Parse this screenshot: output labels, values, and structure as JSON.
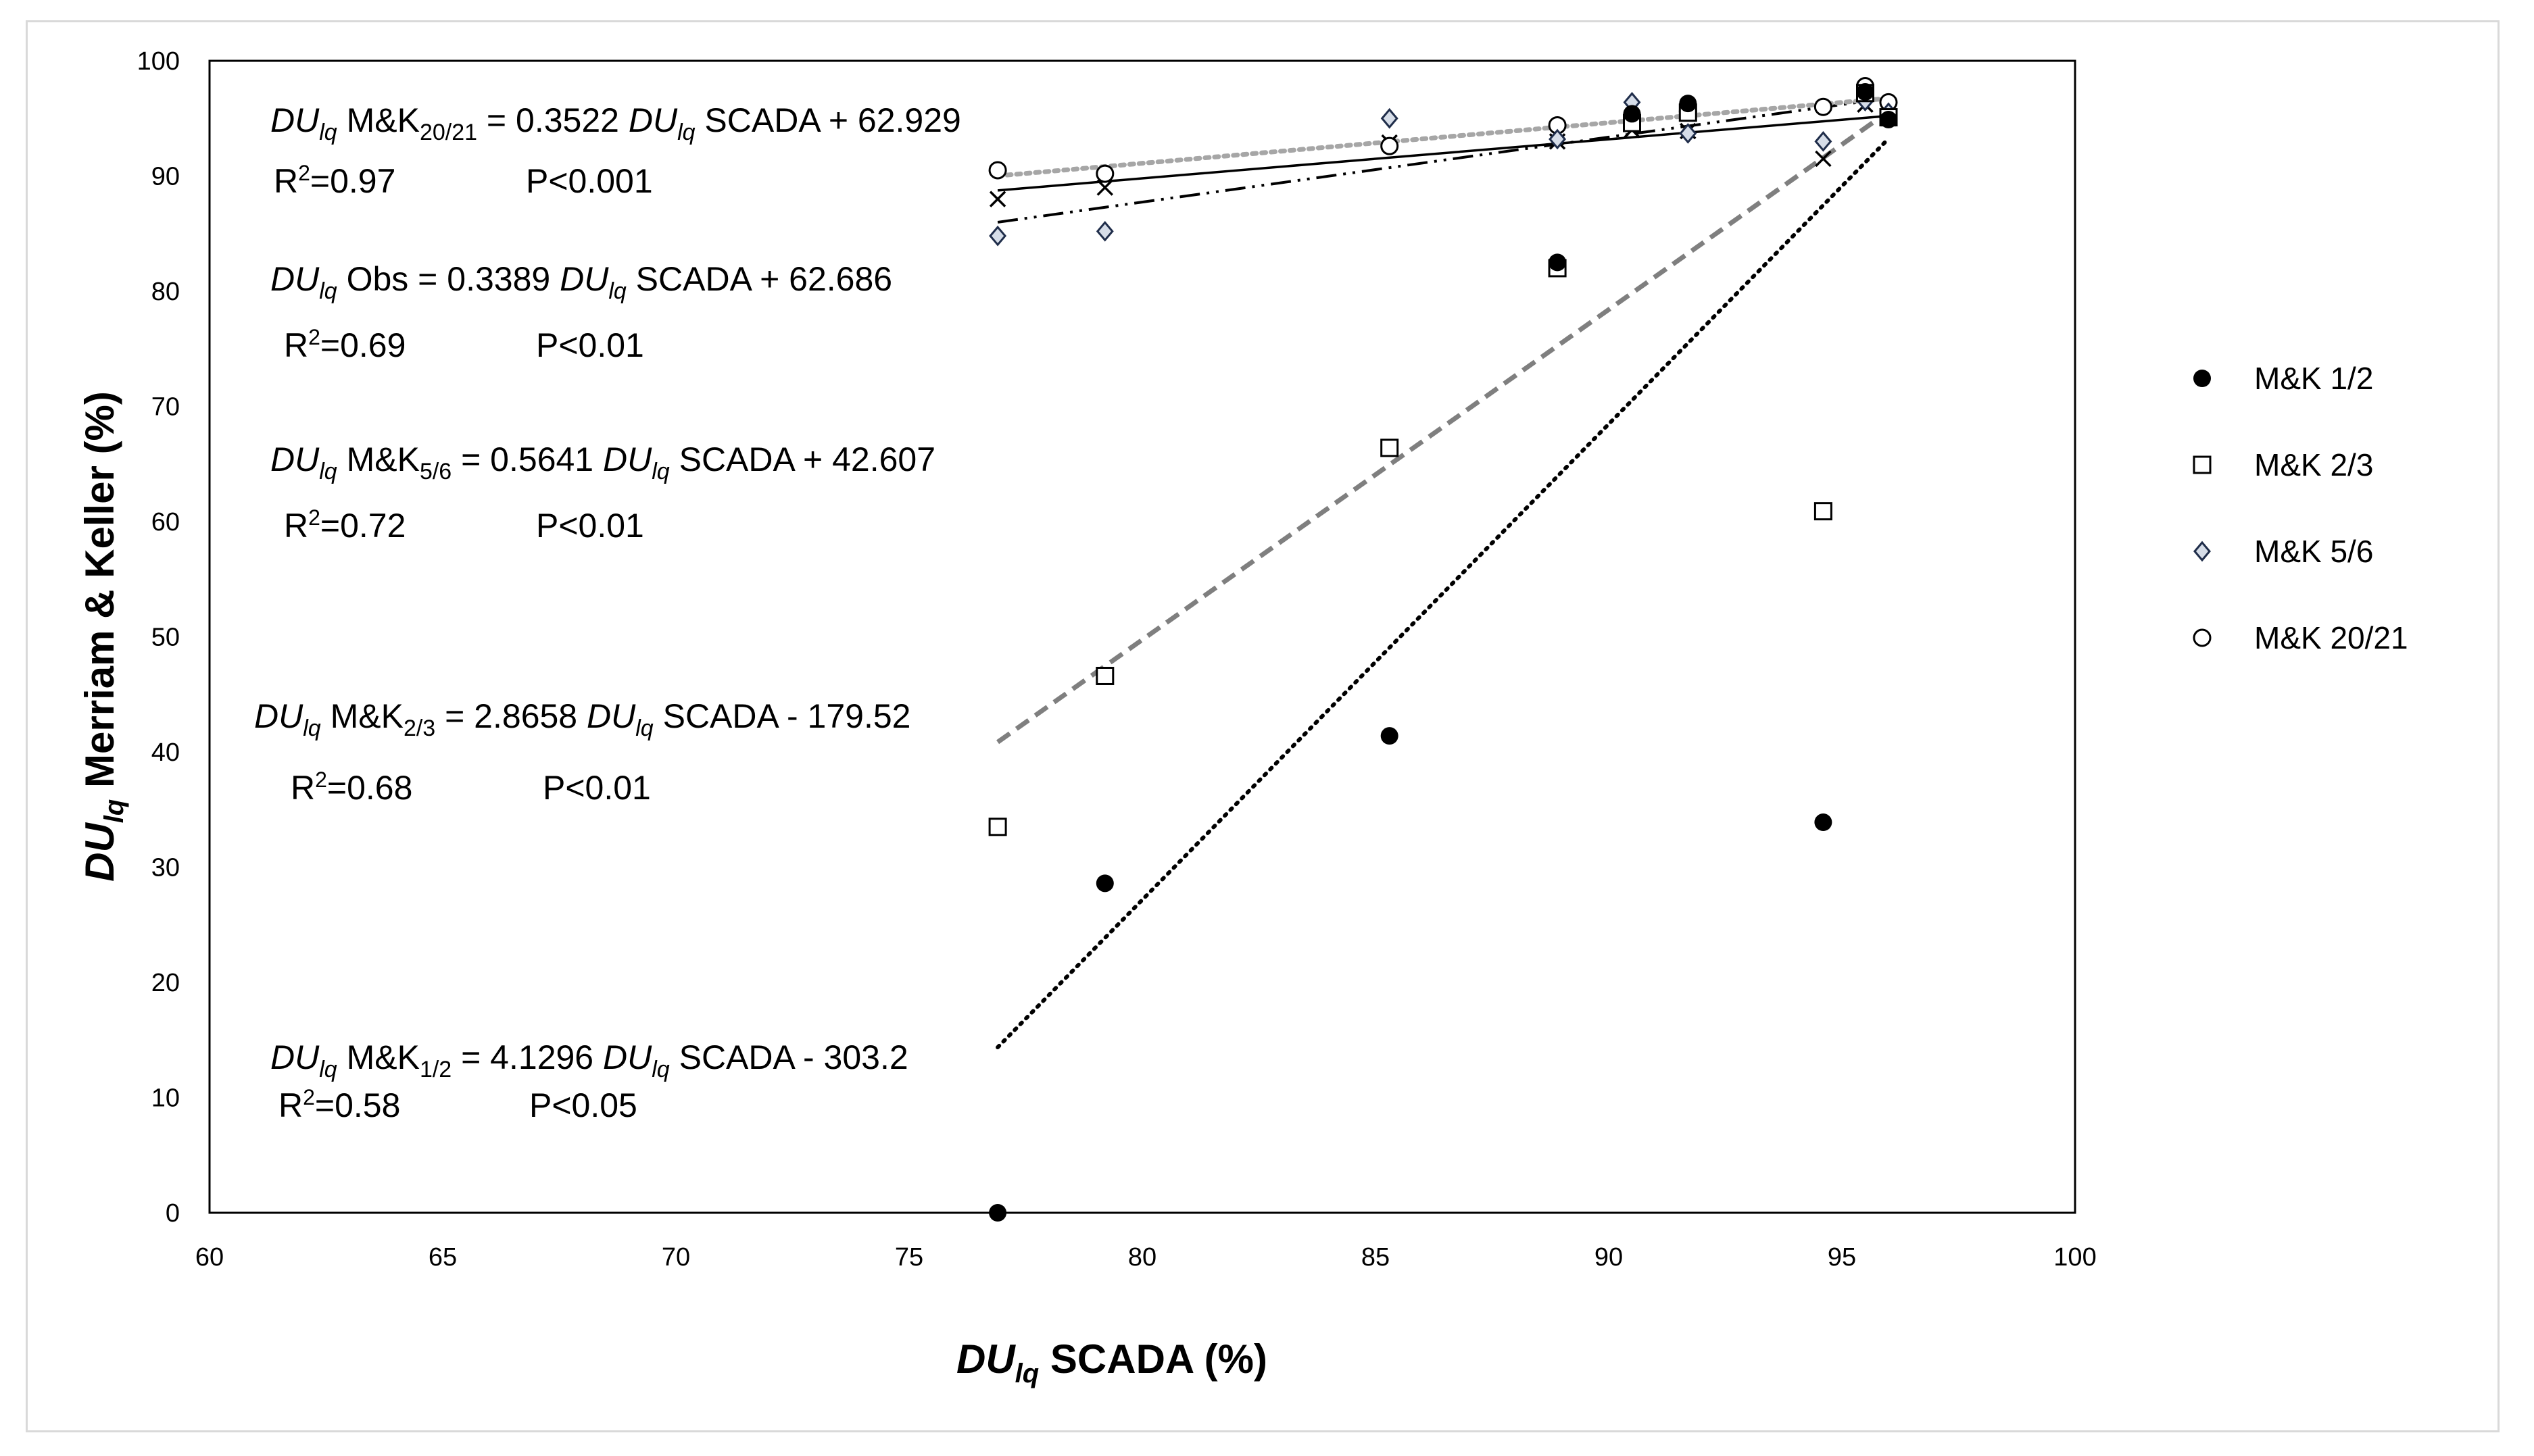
{
  "chart_data": {
    "type": "scatter",
    "title": "",
    "xlabel": {
      "var": "DU",
      "sub": "lq",
      "rest": " SCADA (%)"
    },
    "ylabel": {
      "var": "DU",
      "sub": "lq",
      "rest": " Merriam & Keller (%)"
    },
    "xlim": [
      60,
      100
    ],
    "ylim": [
      0,
      100
    ],
    "xticks": [
      60,
      65,
      70,
      75,
      80,
      85,
      90,
      95,
      100
    ],
    "yticks": [
      0,
      10,
      20,
      30,
      40,
      50,
      60,
      70,
      80,
      90,
      100
    ],
    "grid": false,
    "legend_position": "right",
    "series": [
      {
        "name": "M&K 1/2",
        "marker": "filled-circle",
        "x": [
          76.9,
          79.2,
          85.3,
          88.9,
          90.5,
          91.7,
          94.6,
          95.5,
          96.0
        ],
        "y": [
          0.0,
          28.6,
          41.4,
          82.5,
          95.4,
          96.3,
          33.9,
          97.3,
          94.9
        ],
        "trend": {
          "slope": 4.1296,
          "intercept": -303.2,
          "x_range": [
            76.9,
            96.0
          ],
          "style": "dotted",
          "color": "#000000"
        }
      },
      {
        "name": "M&K 2/3",
        "marker": "open-square",
        "x": [
          76.9,
          79.2,
          85.3,
          88.9,
          90.5,
          91.7,
          94.6,
          95.5,
          96.0
        ],
        "y": [
          33.5,
          46.6,
          66.4,
          82.0,
          94.6,
          95.5,
          60.9,
          97.2,
          95.1
        ],
        "trend": {
          "slope": 2.8658,
          "intercept": -179.52,
          "x_range": [
            76.9,
            96.0
          ],
          "style": "dashed",
          "color": "#7f7f7f"
        }
      },
      {
        "name": "M&K 5/6",
        "marker": "open-diamond",
        "x": [
          76.9,
          79.2,
          85.3,
          88.9,
          90.5,
          91.7,
          94.6,
          95.5,
          96.0
        ],
        "y": [
          84.8,
          85.2,
          95.0,
          93.2,
          96.4,
          93.7,
          93.0,
          96.5,
          95.5
        ],
        "trend": {
          "slope": 0.5641,
          "intercept": 42.607,
          "x_range": [
            76.9,
            96.0
          ],
          "style": "dash-dot-dot",
          "color": "#000000"
        }
      },
      {
        "name": "M&K 20/21",
        "marker": "open-circle",
        "x": [
          76.9,
          79.2,
          85.3,
          88.9,
          90.5,
          91.7,
          94.6,
          95.5,
          96.0
        ],
        "y": [
          90.5,
          90.2,
          92.6,
          94.4,
          95.0,
          95.6,
          96.0,
          97.8,
          96.4
        ],
        "trend": {
          "slope": 0.3522,
          "intercept": 62.929,
          "x_range": [
            76.9,
            96.0
          ],
          "style": "dotted-gray",
          "color": "#a6a6a6"
        }
      },
      {
        "name": "Obs",
        "marker": "x-cross",
        "in_legend": false,
        "x": [
          76.9,
          79.2,
          85.3,
          88.9,
          90.5,
          91.7,
          94.6,
          95.5,
          96.0
        ],
        "y": [
          88.0,
          89.0,
          92.9,
          93.0,
          94.0,
          93.9,
          91.5,
          96.2,
          95.0
        ],
        "trend": {
          "slope": 0.3389,
          "intercept": 62.686,
          "x_range": [
            76.9,
            96.0
          ],
          "style": "solid",
          "color": "#000000"
        }
      }
    ],
    "annotations": [
      {
        "name": "eq-mk-20-21",
        "var": "DU",
        "sub": "lq",
        "label": " M&K",
        "label_sub": "20/21",
        "mid": "   = 0.3522  ",
        "var2": "DU",
        "sub2": "lq",
        "tail": " SCADA  + 62.929",
        "r2": "R",
        "r2_sup": "2",
        "r2_val": "=0.97",
        "p": "P<0.001"
      },
      {
        "name": "eq-obs",
        "var": "DU",
        "sub": "lq",
        "label": " Obs",
        "label_sub": "",
        "mid": " = 0.3389  ",
        "var2": "DU",
        "sub2": "lq",
        "tail": " SCADA  + 62.686",
        "r2": "R",
        "r2_sup": "2",
        "r2_val": "=0.69",
        "p": "P<0.01"
      },
      {
        "name": "eq-mk-5-6",
        "var": "DU",
        "sub": "lq",
        "label": " M&K",
        "label_sub": "5/6",
        "mid": "   = 0.5641  ",
        "var2": "DU",
        "sub2": "lq",
        "tail": " SCADA + 42.607",
        "r2": "R",
        "r2_sup": "2",
        "r2_val": "=0.72",
        "p": "P<0.01"
      },
      {
        "name": "eq-mk-2-3",
        "var": "DU",
        "sub": "lq",
        "label": " M&K",
        "label_sub": "2/3",
        "mid": "   = 2.8658 ",
        "var2": "DU",
        "sub2": "lq",
        "tail": " SCADA  - 179.52",
        "r2": "R",
        "r2_sup": "2",
        "r2_val": "=0.68",
        "p": "P<0.01"
      },
      {
        "name": "eq-mk-1-2",
        "var": "DU",
        "sub": "lq",
        "label": " M&K",
        "label_sub": "1/2",
        "mid": " = 4.1296 ",
        "var2": "DU",
        "sub2": "lq",
        "tail": " SCADA - 303.2",
        "r2": "R",
        "r2_sup": "2",
        "r2_val": "=0.58",
        "p": "P<0.05"
      }
    ]
  }
}
